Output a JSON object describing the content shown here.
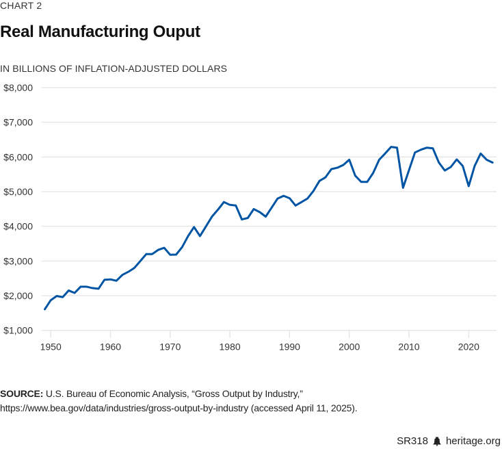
{
  "kicker": "CHART 2",
  "title": "Real Manufacturing Ouput",
  "subtitle": "IN BILLIONS OF INFLATION-ADJUSTED DOLLARS",
  "source": {
    "label": "SOURCE:",
    "text": "U.S. Bureau of Economic Analysis, “Gross Output by Industry,”",
    "text2": "https://www.bea.gov/data/industries/gross-output-by-industry (accessed April 11, 2025)."
  },
  "footer": {
    "report_id": "SR318",
    "icon": "liberty-bell-icon",
    "site": "heritage.org"
  },
  "colors": {
    "line": "#0054A4",
    "grid": "#E6E6E6",
    "text": "#333333"
  },
  "chart_data": {
    "type": "line",
    "title": "Real Manufacturing Ouput",
    "subtitle": "IN BILLIONS OF INFLATION-ADJUSTED DOLLARS",
    "xlabel": "",
    "ylabel": "",
    "xlim": [
      1949,
      2024
    ],
    "ylim": [
      1000,
      8000
    ],
    "grid": true,
    "legend": "none",
    "x_ticks": [
      1950,
      1960,
      1970,
      1980,
      1990,
      2000,
      2010,
      2020
    ],
    "x_tick_labels": [
      "1950",
      "1960",
      "1970",
      "1980",
      "1990",
      "2000",
      "2010",
      "2020"
    ],
    "y_ticks": [
      1000,
      2000,
      3000,
      4000,
      5000,
      6000,
      7000,
      8000
    ],
    "y_tick_labels": [
      "$1,000",
      "$2,000",
      "$3,000",
      "$4,000",
      "$5,000",
      "$6,000",
      "$7,000",
      "$8,000"
    ],
    "series": [
      {
        "name": "Real Manufacturing Output",
        "x": [
          1949,
          1950,
          1951,
          1952,
          1953,
          1954,
          1955,
          1956,
          1957,
          1958,
          1959,
          1960,
          1961,
          1962,
          1963,
          1964,
          1965,
          1966,
          1967,
          1968,
          1969,
          1970,
          1971,
          1972,
          1973,
          1974,
          1975,
          1976,
          1977,
          1978,
          1979,
          1980,
          1981,
          1982,
          1983,
          1984,
          1985,
          1986,
          1987,
          1988,
          1989,
          1990,
          1991,
          1992,
          1993,
          1994,
          1995,
          1996,
          1997,
          1998,
          1999,
          2000,
          2001,
          2002,
          2003,
          2004,
          2005,
          2006,
          2007,
          2008,
          2009,
          2010,
          2011,
          2012,
          2013,
          2014,
          2015,
          2016,
          2017,
          2018,
          2019,
          2020,
          2021,
          2022,
          2023,
          2024
        ],
        "values": [
          1610,
          1870,
          1990,
          1960,
          2150,
          2080,
          2260,
          2260,
          2220,
          2200,
          2460,
          2470,
          2430,
          2600,
          2690,
          2800,
          3000,
          3200,
          3200,
          3320,
          3380,
          3180,
          3185,
          3400,
          3720,
          3980,
          3720,
          4000,
          4280,
          4480,
          4700,
          4620,
          4600,
          4200,
          4240,
          4500,
          4410,
          4280,
          4540,
          4800,
          4880,
          4810,
          4600,
          4700,
          4800,
          5020,
          5310,
          5410,
          5650,
          5690,
          5770,
          5920,
          5460,
          5280,
          5280,
          5540,
          5920,
          6100,
          6290,
          6270,
          5110,
          5620,
          6130,
          6210,
          6270,
          6250,
          5840,
          5610,
          5710,
          5930,
          5740,
          5160,
          5740,
          6100,
          5920,
          5840
        ]
      }
    ]
  }
}
